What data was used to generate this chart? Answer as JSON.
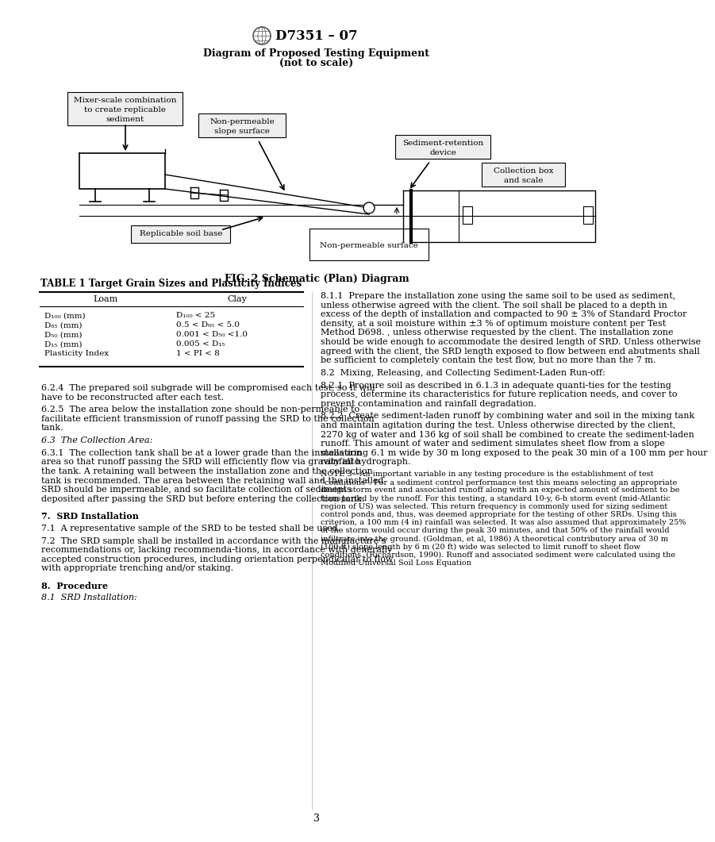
{
  "page_title": "D7351 – 07",
  "diagram_title": "Diagram of Proposed Testing Equipment",
  "diagram_subtitle": "(not to scale)",
  "fig_caption": "FIG. 2 Schematic (Plan) Diagram",
  "table_title": "TABLE 1 Target Grain Sizes and Plasticity Indices",
  "table_col1": "Loam",
  "table_col2": "Clay",
  "table_rows_left": [
    "D₁₀₀ (mm)",
    "D₈₅ (mm)",
    "D₅₀ (mm)",
    "D₁₅ (mm)",
    "Plasticity Index"
  ],
  "table_rows_right": [
    "D₁₀₀ < 25",
    "0.5 < D₈₅ < 5.0",
    "0.001 < D₅₀ <1.0",
    "0.005 < D₁₅",
    "1 < PI < 8"
  ],
  "background_color": "#ffffff",
  "text_color": "#000000",
  "page_number": "3",
  "left_col_paragraphs": [
    {
      "text": "6.2.4  The prepared soil subgrade will be compromised each test, so it will have to be reconstructed after each test.",
      "indent": true,
      "bold": false,
      "italic": false
    },
    {
      "text": "6.2.5  The area below the installation zone should be non-permeable to facilitate efficient transmission of runoff passing the SRD to the collection tank.",
      "indent": true,
      "bold": false,
      "italic": false
    },
    {
      "text": "6.3  The Collection Area:",
      "indent": true,
      "bold": false,
      "italic": true
    },
    {
      "text": "6.3.1  The collection tank shall be at a lower grade than the installation area so that runoff passing the SRD will efficiently flow via gravity into the tank. A retaining wall between the installation zone and the collection tank is recommended. The area between the retaining wall and the installed SRD should be impermeable, and so facilitate collection of sediments deposited after passing the SRD but before entering the collection tank.",
      "indent": true,
      "bold": false,
      "italic": false
    },
    {
      "text": "7.  SRD Installation",
      "indent": false,
      "bold": true,
      "italic": false,
      "extra_before": true
    },
    {
      "text": "7.1  A representative sample of the SRD to be tested shall be used.",
      "indent": true,
      "bold": false,
      "italic": false
    },
    {
      "text": "7.2  The SRD sample shall be installed in accordance with the manufacture’s recommendations or, lacking recommenda-tions, in accordance with generally accepted construction procedures, including orientation perpendicular to flow with appropriate trenching and/or staking.",
      "indent": true,
      "bold": false,
      "italic": false
    },
    {
      "text": "8.  Procedure",
      "indent": false,
      "bold": true,
      "italic": false,
      "extra_before": true
    },
    {
      "text": "8.1  SRD Installation:",
      "indent": true,
      "bold": false,
      "italic": true
    }
  ],
  "right_col_paragraphs": [
    {
      "text": "8.1.1  Prepare the installation zone using the same soil to be used as sediment, unless otherwise agreed with the client. The soil shall be placed to a depth in excess of the depth of installation and compacted to 90 ± 3% of Standard Proctor density, at a soil moisture within ±3 % of optimum moisture content per Test Method D698. , unless otherwise requested by the client. The installation zone should be wide enough to accommodate the desired length of SRD. Unless otherwise agreed with the client, the SRD length exposed to flow between end abutments shall be sufficient to completely contain the test flow, but no more than the 7 m.",
      "indent": true,
      "bold": false,
      "italic": false,
      "note": false
    },
    {
      "text": "8.2  Mixing, Releasing, and Collecting Sediment-Laden Run-off:",
      "indent": true,
      "bold": false,
      "italic": false,
      "note": false
    },
    {
      "text": "8.2.1  Procure soil as described in 6.1.3 in adequate quanti-ties for the testing process, determine its characteristics for future replication needs, and cover to prevent contamination and rainfall degradation.",
      "indent": true,
      "bold": false,
      "italic": false,
      "note": false
    },
    {
      "text": "8.2.2  Create sediment-laden runoff by combining water and soil in the mixing tank and maintain agitation during the test. Unless otherwise directed by the client, 2270 kg of water and 136 kg of soil shall be combined to create the sediment-laden runoff. This amount of water and sediment simulates sheet flow from a slope measuring 6.1 m wide by 30 m long exposed to the peak 30 min of a 100 mm per hour rainfall hydrograph.",
      "indent": true,
      "bold": false,
      "italic": false,
      "note": false
    },
    {
      "text": "NOTE 3—An important variable in any testing procedure is the establishment of test “conditions”. For a sediment control performance test this means selecting an appropriate design storm event and associated runoff along with an expected amount of sediment to be transported by the runoff. For this testing, a standard 10-y, 6-h storm event (mid-Atlantic region of US) was selected. This return frequency is commonly used for sizing sediment control ponds and, thus, was deemed appropriate for the testing of other SRDs. Using this criterion, a 100 mm (4 in) rainfall was selected. It was also assumed that approximately 25% of the storm would occur during the peak 30 minutes, and that 50% of the rainfall would infiltrate into the ground. (Goldman, et al, 1986) A theoretical contributory area of 30 m (100 ft) slope length by 6 m (20 ft) wide was selected to limit runoff to sheet flow conditions. (Richardson, 1990). Runoff and associated sediment were calculated using the Modified Universal Soil Loss Equation",
      "indent": false,
      "bold": false,
      "italic": false,
      "note": true
    }
  ]
}
